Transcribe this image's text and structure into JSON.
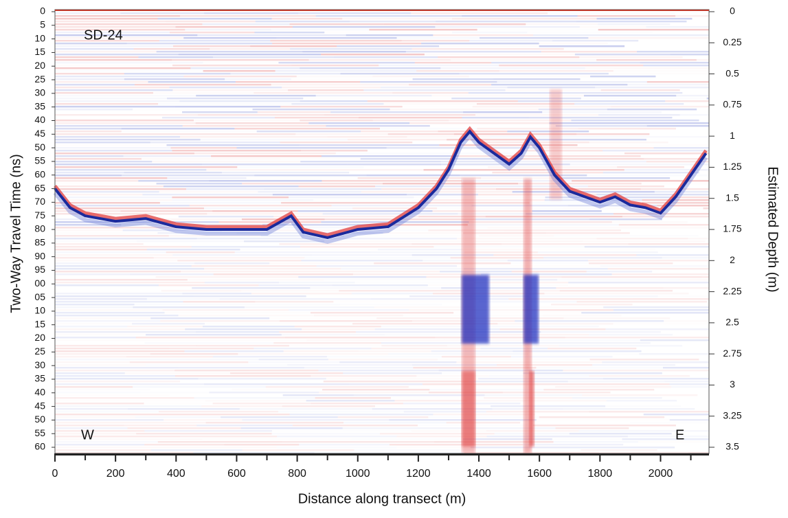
{
  "chart_data": {
    "type": "radargram",
    "title": "SD-24",
    "west_label": "W",
    "east_label": "E",
    "xlabel": "Distance along transect  (m)",
    "ylabel": "Two-Way Travel Time (ns)",
    "y2label": "Estimated Depth (m)",
    "xlim": [
      0,
      2160
    ],
    "ylim": [
      0,
      161
    ],
    "y2lim": [
      0,
      3.522
    ],
    "xticks": [
      0,
      200,
      400,
      600,
      800,
      1000,
      1200,
      1400,
      1600,
      1800,
      2000
    ],
    "xminorticks": [
      100,
      300,
      500,
      700,
      900,
      1100,
      1300,
      1500,
      1700,
      1900,
      2100
    ],
    "yticks": [
      0,
      5,
      10,
      15,
      20,
      25,
      30,
      35,
      40,
      45,
      50,
      55,
      60,
      65,
      70,
      75,
      80,
      85,
      90,
      95,
      {
        "value": 100,
        "label": "00"
      },
      {
        "value": 105,
        "label": "05"
      },
      {
        "value": 110,
        "label": "10"
      },
      {
        "value": 115,
        "label": "15"
      },
      {
        "value": 120,
        "label": "20"
      },
      {
        "value": 125,
        "label": "25"
      },
      {
        "value": 130,
        "label": "30"
      },
      {
        "value": 135,
        "label": "35"
      },
      {
        "value": 140,
        "label": "40"
      },
      {
        "value": 145,
        "label": "45"
      },
      {
        "value": 150,
        "label": "50"
      },
      {
        "value": 155,
        "label": "55"
      },
      {
        "value": 160,
        "label": "60"
      }
    ],
    "y2ticks": [
      0,
      0.25,
      0.5,
      0.75,
      1,
      1.25,
      1.5,
      1.75,
      2,
      2.25,
      2.5,
      2.75,
      3,
      3.25,
      3.5
    ],
    "reflector": {
      "color": "#1a2a9c",
      "x": [
        0,
        50,
        100,
        200,
        300,
        400,
        500,
        600,
        700,
        780,
        820,
        900,
        1000,
        1100,
        1200,
        1260,
        1300,
        1340,
        1370,
        1400,
        1450,
        1500,
        1540,
        1570,
        1600,
        1650,
        1700,
        1800,
        1850,
        1900,
        1950,
        2000,
        2050,
        2100,
        2150
      ],
      "values": [
        65,
        72,
        75,
        77,
        76,
        79,
        80,
        80,
        80,
        75,
        81,
        83,
        80,
        79,
        72,
        65,
        58,
        48,
        44,
        48,
        52,
        56,
        52,
        46,
        50,
        60,
        66,
        70,
        68,
        71,
        72,
        74,
        68,
        60,
        52
      ]
    }
  }
}
